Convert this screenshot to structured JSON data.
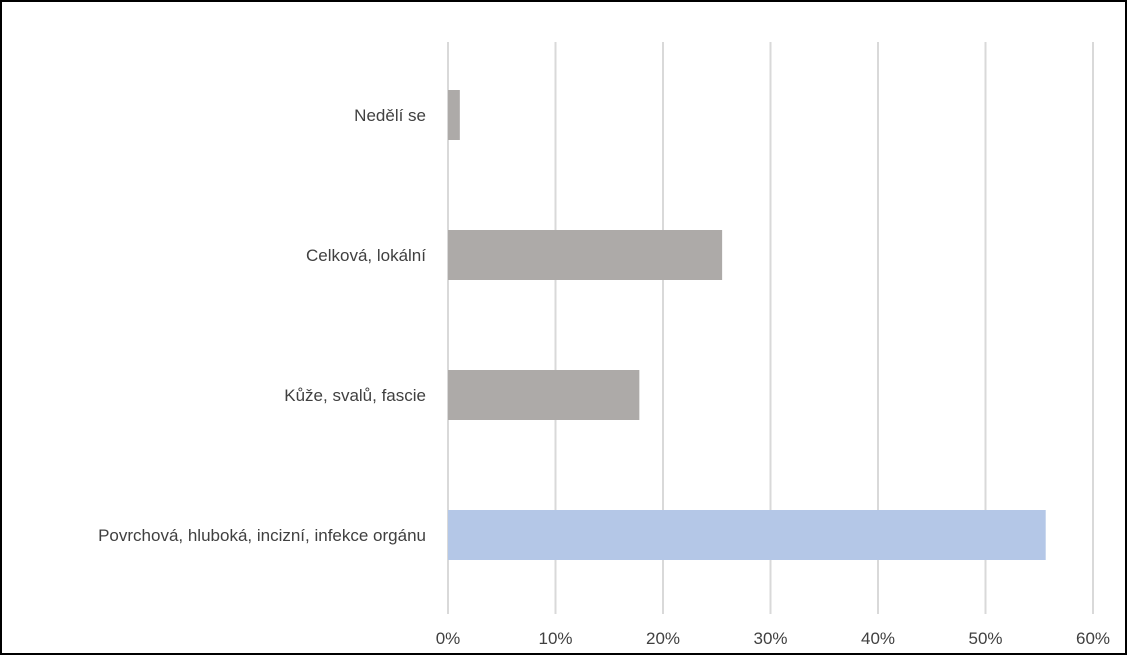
{
  "chart_data": {
    "type": "bar",
    "orientation": "horizontal",
    "title": "",
    "xlabel": "",
    "ylabel": "",
    "categories": [
      "Nedělí se",
      "Celková, lokální",
      "Kůže, svalů, fascie",
      "Povrchová, hluboká, incizní, infekce orgánu"
    ],
    "values": [
      0.011,
      0.255,
      0.178,
      0.556
    ],
    "bar_colors": [
      "#adaaa8",
      "#adaaa8",
      "#adaaa8",
      "#b4c7e7"
    ],
    "xlim": [
      0,
      0.6
    ],
    "xticks": [
      0,
      0.1,
      0.2,
      0.3,
      0.4,
      0.5,
      0.6
    ],
    "xtick_labels": [
      "0%",
      "10%",
      "20%",
      "30%",
      "40%",
      "50%",
      "60%"
    ],
    "grid": true,
    "grid_color": "#d9d9d9",
    "legend": "none"
  }
}
